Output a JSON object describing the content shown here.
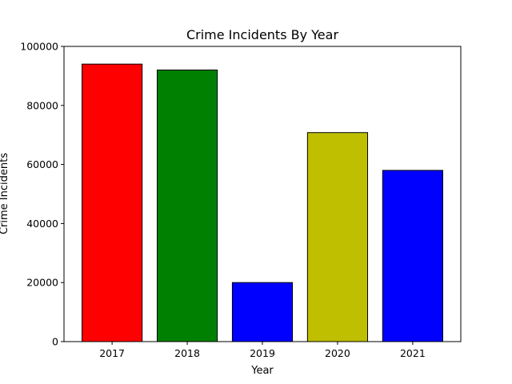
{
  "chart_data": {
    "type": "bar",
    "title": "Crime Incidents By Year",
    "xlabel": "Year",
    "ylabel": "Crime Incidents",
    "categories": [
      "2017",
      "2018",
      "2019",
      "2020",
      "2021"
    ],
    "values": [
      94000,
      92000,
      20000,
      70800,
      58000
    ],
    "colors": [
      "#ff0000",
      "#008000",
      "#0000ff",
      "#bfbf00",
      "#0000ff"
    ],
    "ylim": [
      0,
      100000
    ],
    "yticks": [
      0,
      20000,
      40000,
      60000,
      80000,
      100000
    ],
    "grid": false
  }
}
